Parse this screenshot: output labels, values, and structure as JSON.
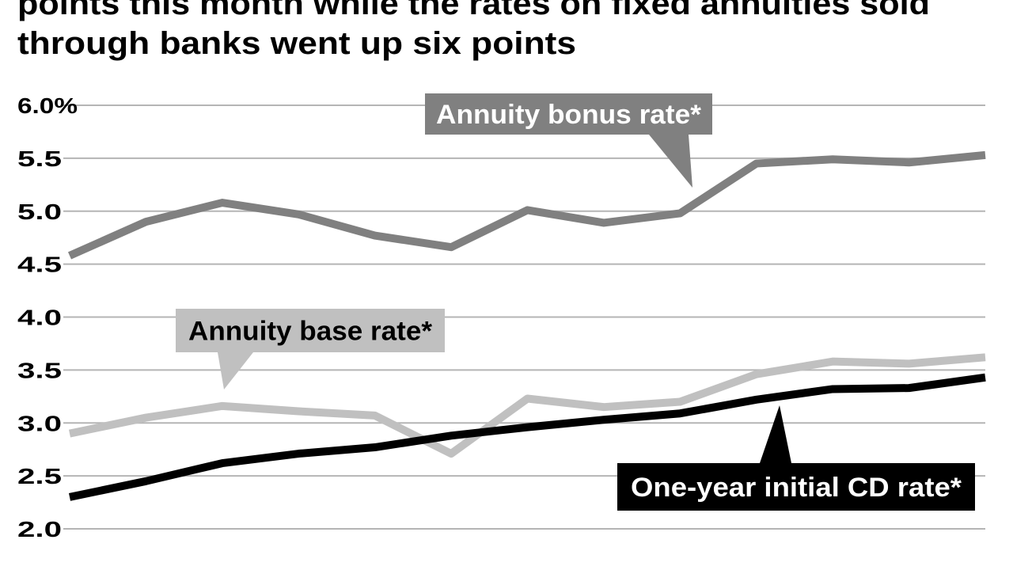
{
  "chart_data": {
    "type": "line",
    "title": [
      "points this month while the rates on fixed annuities sold",
      "through banks went up six points"
    ],
    "categories": [
      null,
      null,
      null,
      null,
      null,
      null,
      null,
      null,
      null,
      null,
      null,
      null,
      null
    ],
    "series": [
      {
        "name": "Annuity bonus rate*",
        "color": "#808080",
        "values": [
          4.58,
          4.9,
          5.08,
          4.97,
          4.77,
          4.66,
          5.01,
          4.89,
          4.98,
          5.45,
          5.49,
          5.46,
          5.53
        ]
      },
      {
        "name": "Annuity base rate*",
        "color": "#c0c0c0",
        "values": [
          2.9,
          3.05,
          3.16,
          3.11,
          3.07,
          2.71,
          3.23,
          3.15,
          3.2,
          3.46,
          3.58,
          3.56,
          3.62
        ]
      },
      {
        "name": "One-year initial CD rate*",
        "color": "#000000",
        "values": [
          2.3,
          2.45,
          2.62,
          2.71,
          2.77,
          2.88,
          2.96,
          3.03,
          3.09,
          3.22,
          3.32,
          3.33,
          3.43
        ]
      }
    ],
    "ylim": [
      2,
      6
    ],
    "yticks": [
      {
        "value": 2,
        "label": "2.0"
      },
      2.5,
      {
        "value": 3,
        "label": "3.0"
      },
      3.5,
      {
        "value": 4,
        "label": "4.0"
      },
      4.5,
      {
        "value": 5,
        "label": "5.0"
      },
      5.5,
      {
        "value": 6,
        "label": "6.0%"
      }
    ],
    "grid": true
  }
}
